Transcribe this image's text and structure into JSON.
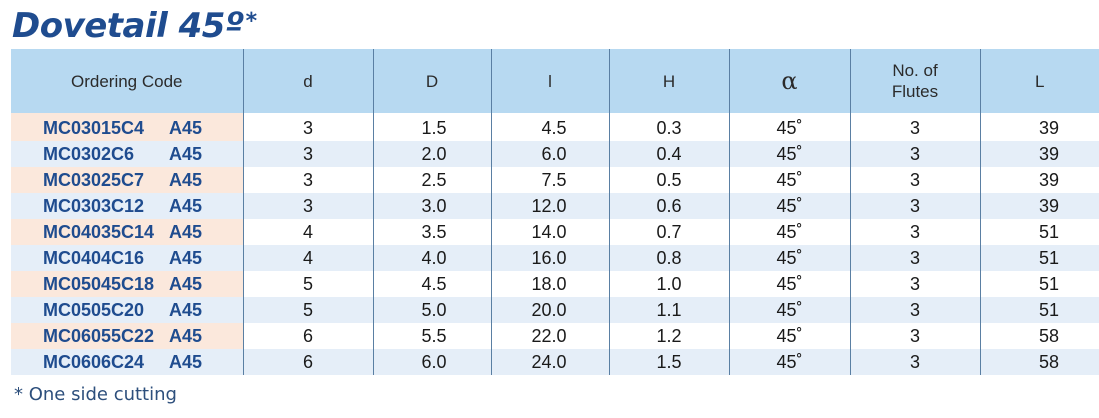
{
  "title": {
    "text": "Dovetail 45º",
    "star": "*"
  },
  "table": {
    "headers": [
      "Ordering Code",
      "d",
      "D",
      "l",
      "H",
      "α",
      "No. of\nFlutes",
      "L"
    ],
    "rows": [
      {
        "code": "MC03015C4",
        "suffix": "A45",
        "d": "3",
        "D": "1.5",
        "l": "4.5",
        "H": "0.3",
        "alpha": "45˚",
        "flutes": "3",
        "L": "39"
      },
      {
        "code": "MC0302C6",
        "suffix": "A45",
        "d": "3",
        "D": "2.0",
        "l": "6.0",
        "H": "0.4",
        "alpha": "45˚",
        "flutes": "3",
        "L": "39"
      },
      {
        "code": "MC03025C7",
        "suffix": "A45",
        "d": "3",
        "D": "2.5",
        "l": "7.5",
        "H": "0.5",
        "alpha": "45˚",
        "flutes": "3",
        "L": "39"
      },
      {
        "code": "MC0303C12",
        "suffix": "A45",
        "d": "3",
        "D": "3.0",
        "l": "12.0",
        "H": "0.6",
        "alpha": "45˚",
        "flutes": "3",
        "L": "39"
      },
      {
        "code": "MC04035C14",
        "suffix": "A45",
        "d": "4",
        "D": "3.5",
        "l": "14.0",
        "H": "0.7",
        "alpha": "45˚",
        "flutes": "3",
        "L": "51"
      },
      {
        "code": "MC0404C16",
        "suffix": "A45",
        "d": "4",
        "D": "4.0",
        "l": "16.0",
        "H": "0.8",
        "alpha": "45˚",
        "flutes": "3",
        "L": "51"
      },
      {
        "code": "MC05045C18",
        "suffix": "A45",
        "d": "5",
        "D": "4.5",
        "l": "18.0",
        "H": "1.0",
        "alpha": "45˚",
        "flutes": "3",
        "L": "51"
      },
      {
        "code": "MC0505C20",
        "suffix": "A45",
        "d": "5",
        "D": "5.0",
        "l": "20.0",
        "H": "1.1",
        "alpha": "45˚",
        "flutes": "3",
        "L": "51"
      },
      {
        "code": "MC06055C22",
        "suffix": "A45",
        "d": "6",
        "D": "5.5",
        "l": "22.0",
        "H": "1.2",
        "alpha": "45˚",
        "flutes": "3",
        "L": "58"
      },
      {
        "code": "MC0606C24",
        "suffix": "A45",
        "d": "6",
        "D": "6.0",
        "l": "24.0",
        "H": "1.5",
        "alpha": "45˚",
        "flutes": "3",
        "L": "58"
      }
    ]
  },
  "footnote": "* One side cutting",
  "colors": {
    "title": "#1f4c8f",
    "header_bg": "#b7d9f1",
    "code_text": "#1f4c8f",
    "code_cell_bg": "#fbe8dc",
    "stripe_bg": "#e5eef8"
  }
}
